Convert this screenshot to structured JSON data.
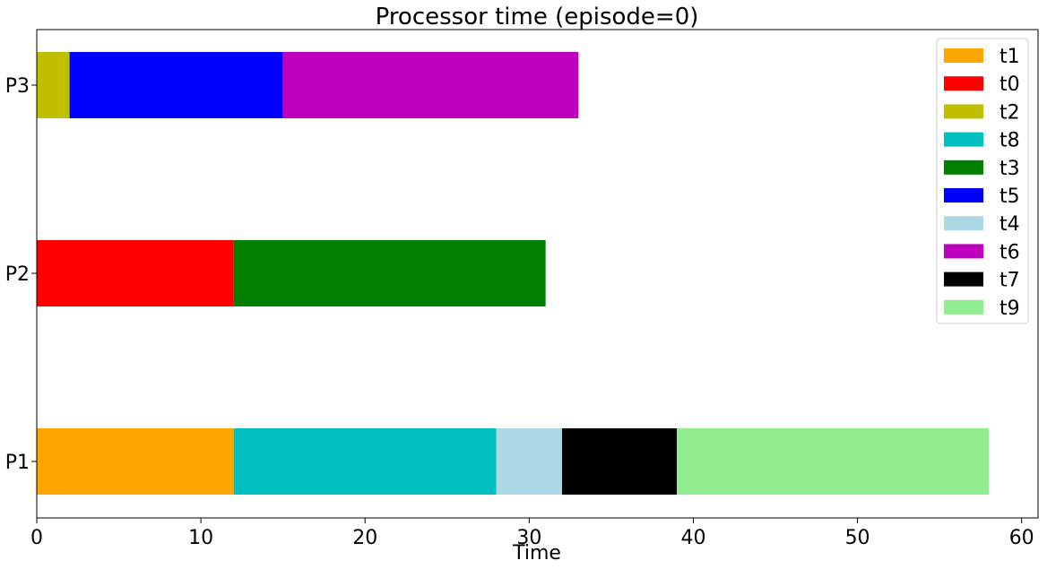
{
  "chart_data": {
    "type": "bar",
    "orientation": "horizontal-stacked",
    "title": "Processor time (episode=0)",
    "xlabel": "Time",
    "ylabel": "",
    "xlim": [
      0,
      61
    ],
    "xticks": [
      "0",
      "10",
      "20",
      "30",
      "40",
      "50",
      "60"
    ],
    "categories": [
      "P1",
      "P2",
      "P3"
    ],
    "grid": false,
    "legend_position": "top-right",
    "legend": [
      {
        "name": "t1",
        "color": "#ffa500"
      },
      {
        "name": "t0",
        "color": "#ff0000"
      },
      {
        "name": "t2",
        "color": "#bfbf00"
      },
      {
        "name": "t8",
        "color": "#00bfbf"
      },
      {
        "name": "t3",
        "color": "#008000"
      },
      {
        "name": "t5",
        "color": "#0000ff"
      },
      {
        "name": "t4",
        "color": "#add8e6"
      },
      {
        "name": "t6",
        "color": "#bf00bf"
      },
      {
        "name": "t7",
        "color": "#000000"
      },
      {
        "name": "t9",
        "color": "#90ee90"
      }
    ],
    "bars": [
      {
        "processor": "P1",
        "task": "t1",
        "start": 0,
        "end": 12
      },
      {
        "processor": "P1",
        "task": "t8",
        "start": 12,
        "end": 28
      },
      {
        "processor": "P1",
        "task": "t4",
        "start": 28,
        "end": 32
      },
      {
        "processor": "P1",
        "task": "t7",
        "start": 32,
        "end": 39
      },
      {
        "processor": "P1",
        "task": "t9",
        "start": 39,
        "end": 58
      },
      {
        "processor": "P2",
        "task": "t0",
        "start": 0,
        "end": 12
      },
      {
        "processor": "P2",
        "task": "t3",
        "start": 12,
        "end": 31
      },
      {
        "processor": "P3",
        "task": "t2",
        "start": 0,
        "end": 2
      },
      {
        "processor": "P3",
        "task": "t5",
        "start": 2,
        "end": 15
      },
      {
        "processor": "P3",
        "task": "t6",
        "start": 15,
        "end": 33
      }
    ]
  }
}
